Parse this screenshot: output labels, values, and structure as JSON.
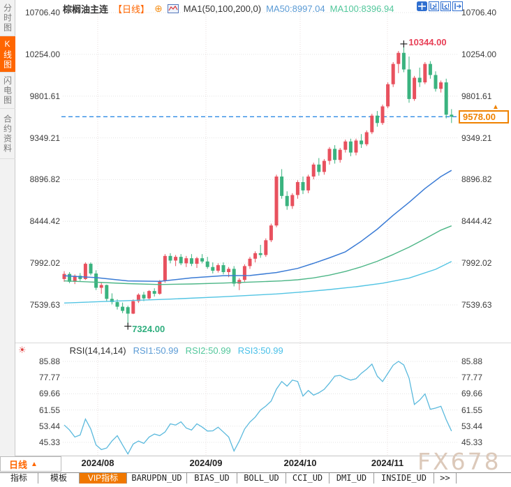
{
  "header": {
    "symbol": "棕榈油主连",
    "period_tag": "【日线】",
    "ma_label": "MA1(50,100,200,0)",
    "ma50": "MA50:8997.04",
    "ma100": "MA100:8396.94"
  },
  "top_icons": [
    "pan-crosshair",
    "compress-left",
    "compress-right",
    "shift-right"
  ],
  "sidebar": {
    "items": [
      {
        "label": "分时图",
        "active": false
      },
      {
        "label": "K线图",
        "active": true
      },
      {
        "label": "闪电图",
        "active": false
      },
      {
        "label": "合约资料",
        "active": false
      }
    ]
  },
  "main_axis": {
    "labels": [
      "10706.40",
      "10254.00",
      "9801.61",
      "9349.21",
      "8896.82",
      "8444.42",
      "7992.02",
      "7539.63"
    ]
  },
  "rsi_axis": {
    "labels": [
      "85.88",
      "77.77",
      "69.66",
      "61.55",
      "53.44",
      "45.33"
    ]
  },
  "x_axis": {
    "labels": [
      "2024/08",
      "2024/09",
      "2024/10",
      "2024/11"
    ]
  },
  "annotations": {
    "high": "10344.00",
    "low": "7324.00"
  },
  "price_marker": {
    "value": "9578.00",
    "arrow": "▲"
  },
  "rsi_header": {
    "icon": "sun",
    "title": "RSI(14,14,14)",
    "rsi1": "RSI1:50.99",
    "rsi2": "RSI2:50.99",
    "rsi3": "RSI3:50.99"
  },
  "period_selector": {
    "label": "日线",
    "arrow": "▲"
  },
  "bottom_toolbar": {
    "items": [
      "指标",
      "模板",
      "VIP指标",
      "BARUPDN_UD",
      "BIAS_UD",
      "BOLL_UD",
      "CCI_UD",
      "DMI_UD",
      "INSIDE_UD",
      ">>"
    ],
    "active": "VIP指标"
  },
  "watermark": "FX678",
  "colors": {
    "up": "#e8515e",
    "down": "#3ab37f",
    "ma50": "#3a7bd5",
    "ma100": "#4db687",
    "ma200": "#52c4e3",
    "rsi": "#5ab9dd",
    "dashed": "#2f8be5",
    "accent": "#ff6600",
    "marker": "#ef8200",
    "high_text": "#e84057",
    "low_text": "#2fae7e"
  },
  "chart_data": {
    "type": "candlestick",
    "title": "棕榈油主连 日线",
    "panels": [
      "price",
      "rsi"
    ],
    "price": {
      "ylim": [
        7539.63,
        10706.4
      ],
      "last_price": 9578.0,
      "markers": {
        "high": {
          "index": 64,
          "value": 10344
        },
        "low": {
          "index": 12,
          "value": 7324
        }
      },
      "candles": [
        [
          7820,
          7905,
          7790,
          7875
        ],
        [
          7875,
          7895,
          7775,
          7790
        ],
        [
          7790,
          7870,
          7765,
          7855
        ],
        [
          7855,
          7885,
          7800,
          7820
        ],
        [
          7820,
          8000,
          7810,
          7985
        ],
        [
          7985,
          8000,
          7860,
          7880
        ],
        [
          7880,
          7915,
          7700,
          7725
        ],
        [
          7725,
          7780,
          7660,
          7755
        ],
        [
          7755,
          7760,
          7580,
          7605
        ],
        [
          7605,
          7665,
          7545,
          7570
        ],
        [
          7570,
          7600,
          7490,
          7520
        ],
        [
          7520,
          7565,
          7450,
          7475
        ],
        [
          7515,
          7530,
          7324,
          7445
        ],
        [
          7445,
          7600,
          7440,
          7580
        ],
        [
          7580,
          7665,
          7560,
          7650
        ],
        [
          7650,
          7680,
          7580,
          7610
        ],
        [
          7610,
          7700,
          7600,
          7690
        ],
        [
          7690,
          7720,
          7630,
          7660
        ],
        [
          7660,
          7810,
          7650,
          7800
        ],
        [
          7800,
          8090,
          7780,
          8070
        ],
        [
          8070,
          8100,
          7990,
          8020
        ],
        [
          8020,
          8080,
          7960,
          8060
        ],
        [
          8060,
          8090,
          7970,
          7990
        ],
        [
          7990,
          8070,
          7950,
          8045
        ],
        [
          8045,
          8090,
          7960,
          7985
        ],
        [
          7985,
          8060,
          7940,
          8045
        ],
        [
          8045,
          8090,
          7990,
          8010
        ],
        [
          8010,
          8060,
          7930,
          7950
        ],
        [
          7950,
          8000,
          7880,
          7910
        ],
        [
          7910,
          7990,
          7890,
          7970
        ],
        [
          7970,
          8000,
          7870,
          7895
        ],
        [
          7895,
          7950,
          7840,
          7930
        ],
        [
          7930,
          7960,
          7740,
          7770
        ],
        [
          7770,
          7830,
          7700,
          7810
        ],
        [
          7810,
          7980,
          7790,
          7960
        ],
        [
          7960,
          8060,
          7930,
          8040
        ],
        [
          8040,
          8120,
          8000,
          8100
        ],
        [
          8100,
          8190,
          8050,
          8080
        ],
        [
          8080,
          8260,
          8060,
          8240
        ],
        [
          8240,
          8420,
          8220,
          8400
        ],
        [
          8400,
          8950,
          8380,
          8930
        ],
        [
          8930,
          9010,
          8690,
          8720
        ],
        [
          8720,
          8770,
          8570,
          8610
        ],
        [
          8610,
          8750,
          8580,
          8730
        ],
        [
          8730,
          8890,
          8690,
          8870
        ],
        [
          8870,
          8930,
          8740,
          8780
        ],
        [
          8780,
          8950,
          8750,
          8930
        ],
        [
          8930,
          9080,
          8900,
          9060
        ],
        [
          9060,
          9130,
          8940,
          8980
        ],
        [
          8980,
          9120,
          8950,
          9100
        ],
        [
          9100,
          9250,
          9060,
          9230
        ],
        [
          9230,
          9270,
          9070,
          9110
        ],
        [
          9110,
          9240,
          9080,
          9220
        ],
        [
          9220,
          9330,
          9190,
          9310
        ],
        [
          9310,
          9340,
          9150,
          9190
        ],
        [
          9190,
          9340,
          9160,
          9320
        ],
        [
          9320,
          9390,
          9240,
          9280
        ],
        [
          9280,
          9430,
          9260,
          9410
        ],
        [
          9410,
          9610,
          9390,
          9590
        ],
        [
          9590,
          9640,
          9470,
          9510
        ],
        [
          9510,
          9710,
          9490,
          9690
        ],
        [
          9690,
          9950,
          9670,
          9930
        ],
        [
          9930,
          10170,
          9900,
          10150
        ],
        [
          10150,
          10290,
          10050,
          10270
        ],
        [
          10270,
          10344,
          10060,
          10090
        ],
        [
          10090,
          10230,
          9730,
          9770
        ],
        [
          9770,
          10020,
          9750,
          10000
        ],
        [
          10000,
          10110,
          9900,
          9950
        ],
        [
          9950,
          10170,
          9930,
          10150
        ],
        [
          10150,
          10180,
          9990,
          10030
        ],
        [
          10030,
          10070,
          9850,
          9880
        ],
        [
          9880,
          9970,
          9840,
          9950
        ],
        [
          9950,
          9990,
          9560,
          9600
        ],
        [
          9600,
          9660,
          9510,
          9578
        ]
      ],
      "ma50": [
        [
          0,
          7855
        ],
        [
          6,
          7835
        ],
        [
          12,
          7800
        ],
        [
          18,
          7795
        ],
        [
          24,
          7832
        ],
        [
          30,
          7856
        ],
        [
          35,
          7858
        ],
        [
          40,
          7890
        ],
        [
          44,
          7935
        ],
        [
          47,
          7990
        ],
        [
          50,
          8050
        ],
        [
          53,
          8115
        ],
        [
          56,
          8230
        ],
        [
          59,
          8360
        ],
        [
          62,
          8510
        ],
        [
          65,
          8650
        ],
        [
          68,
          8800
        ],
        [
          71,
          8930
        ],
        [
          73,
          8997
        ]
      ],
      "ma100": [
        [
          0,
          7800
        ],
        [
          6,
          7785
        ],
        [
          12,
          7770
        ],
        [
          18,
          7760
        ],
        [
          24,
          7766
        ],
        [
          30,
          7776
        ],
        [
          36,
          7788
        ],
        [
          41,
          7800
        ],
        [
          44,
          7812
        ],
        [
          47,
          7832
        ],
        [
          50,
          7862
        ],
        [
          53,
          7902
        ],
        [
          56,
          7952
        ],
        [
          59,
          8012
        ],
        [
          62,
          8085
        ],
        [
          65,
          8165
        ],
        [
          68,
          8255
        ],
        [
          71,
          8350
        ],
        [
          73,
          8396
        ]
      ],
      "ma200": [
        [
          0,
          7560
        ],
        [
          10,
          7582
        ],
        [
          20,
          7602
        ],
        [
          30,
          7628
        ],
        [
          40,
          7658
        ],
        [
          45,
          7680
        ],
        [
          50,
          7706
        ],
        [
          55,
          7736
        ],
        [
          60,
          7775
        ],
        [
          65,
          7830
        ],
        [
          70,
          7925
        ],
        [
          73,
          8010
        ]
      ]
    },
    "rsi": {
      "ylim": [
        45.33,
        85.88
      ],
      "values": [
        54,
        51.5,
        48,
        49,
        57,
        52,
        44,
        41.7,
        42.5,
        46,
        48.7,
        44,
        39.5,
        44.5,
        46,
        44.8,
        48,
        49.5,
        48.7,
        50.5,
        54.6,
        54,
        55.6,
        52.5,
        51.5,
        54.6,
        53,
        51,
        51.1,
        52.9,
        50.5,
        48,
        41,
        46,
        52,
        55.5,
        58,
        61.5,
        63.5,
        66,
        72,
        75.8,
        73.5,
        76.5,
        75.8,
        68.5,
        71.3,
        69,
        70.2,
        71.9,
        75,
        78.5,
        78.9,
        77.5,
        76.5,
        77.2,
        79.9,
        82,
        84.5,
        78.5,
        75.8,
        79.9,
        84,
        85.9,
        84.1,
        77.5,
        64.3,
        66.5,
        69.6,
        61.9,
        62.5,
        63.4,
        56.7,
        51
      ]
    }
  }
}
